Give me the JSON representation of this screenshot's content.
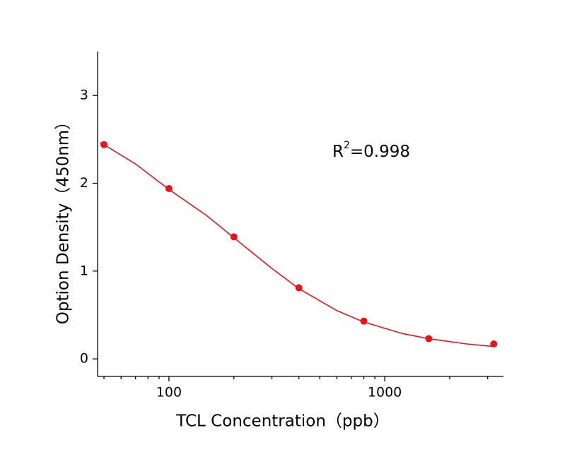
{
  "chart_data": {
    "type": "scatter",
    "x_label": "TCL Concentration（ppb）",
    "y_label": "Option Density（450nm）",
    "annotation": {
      "base": "R",
      "superscript": "2",
      "text": "=0.998"
    },
    "x": [
      50,
      100,
      200,
      400,
      800,
      1600,
      3200
    ],
    "values": [
      2.44,
      1.94,
      1.39,
      0.81,
      0.43,
      0.23,
      0.17
    ],
    "color": "#e8141a",
    "fit": {
      "x": [
        48,
        50,
        70,
        100,
        150,
        200,
        300,
        400,
        600,
        800,
        1200,
        1600,
        2400,
        3200
      ],
      "values": [
        2.46,
        2.44,
        2.22,
        1.93,
        1.63,
        1.38,
        1.03,
        0.8,
        0.55,
        0.42,
        0.29,
        0.23,
        0.17,
        0.14
      ]
    },
    "xscale": "log",
    "xlim": [
      46.7,
      3550
    ],
    "xticks": [
      100,
      1000
    ],
    "xminorticks": [
      50,
      60,
      70,
      80,
      90,
      200,
      300,
      400,
      500,
      600,
      700,
      800,
      900,
      2000,
      3000
    ],
    "ylim": [
      -0.2,
      3.5
    ],
    "yticks": [
      0,
      1,
      2,
      3
    ]
  }
}
